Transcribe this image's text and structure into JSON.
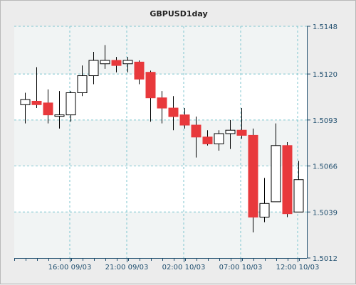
{
  "chart_data": {
    "type": "candlestick",
    "title": "GBPUSD1day",
    "y_ticks": [
      "1.5148",
      "1.5120",
      "1.5093",
      "1.5066",
      "1.5039",
      "1.5012"
    ],
    "x_ticks": [
      "16:00 09/03",
      "21:00 09/03",
      "02:00 10/03",
      "07:00 10/03",
      "12:00 10/03"
    ],
    "ylim": [
      1.5012,
      1.5148
    ],
    "grid": true,
    "colors": {
      "up_body": "#ffffff",
      "down_body": "#e8393c",
      "outline": "#000000",
      "grid": "#7fc6cf",
      "plot_bg": "#ffffff",
      "band": "#f1f4f4"
    },
    "candles": [
      {
        "o": 1.5102,
        "h": 1.5109,
        "l": 1.5091,
        "c": 1.5105
      },
      {
        "o": 1.5104,
        "h": 1.5124,
        "l": 1.51,
        "c": 1.5102
      },
      {
        "o": 1.5103,
        "h": 1.5111,
        "l": 1.5091,
        "c": 1.5096
      },
      {
        "o": 1.5096,
        "h": 1.511,
        "l": 1.5088,
        "c": 1.5096
      },
      {
        "o": 1.5096,
        "h": 1.511,
        "l": 1.5092,
        "c": 1.5109
      },
      {
        "o": 1.5109,
        "h": 1.5125,
        "l": 1.5107,
        "c": 1.5119
      },
      {
        "o": 1.5119,
        "h": 1.5133,
        "l": 1.5114,
        "c": 1.5128
      },
      {
        "o": 1.5126,
        "h": 1.5137,
        "l": 1.5123,
        "c": 1.5128
      },
      {
        "o": 1.5128,
        "h": 1.513,
        "l": 1.5121,
        "c": 1.5125
      },
      {
        "o": 1.5126,
        "h": 1.513,
        "l": 1.5121,
        "c": 1.5128
      },
      {
        "o": 1.5127,
        "h": 1.5128,
        "l": 1.5114,
        "c": 1.5117
      },
      {
        "o": 1.5121,
        "h": 1.5122,
        "l": 1.5092,
        "c": 1.5106
      },
      {
        "o": 1.5106,
        "h": 1.511,
        "l": 1.5091,
        "c": 1.51
      },
      {
        "o": 1.51,
        "h": 1.5107,
        "l": 1.5087,
        "c": 1.5095
      },
      {
        "o": 1.5096,
        "h": 1.51,
        "l": 1.5088,
        "c": 1.509
      },
      {
        "o": 1.509,
        "h": 1.5095,
        "l": 1.5071,
        "c": 1.5083
      },
      {
        "o": 1.5083,
        "h": 1.5087,
        "l": 1.5078,
        "c": 1.5079
      },
      {
        "o": 1.5079,
        "h": 1.5087,
        "l": 1.5075,
        "c": 1.5085
      },
      {
        "o": 1.5085,
        "h": 1.5093,
        "l": 1.5076,
        "c": 1.5087
      },
      {
        "o": 1.5087,
        "h": 1.51,
        "l": 1.5082,
        "c": 1.5084
      },
      {
        "o": 1.5084,
        "h": 1.5088,
        "l": 1.5027,
        "c": 1.5036
      },
      {
        "o": 1.5036,
        "h": 1.5059,
        "l": 1.5033,
        "c": 1.5044
      },
      {
        "o": 1.5045,
        "h": 1.5091,
        "l": 1.5045,
        "c": 1.5078
      },
      {
        "o": 1.5078,
        "h": 1.508,
        "l": 1.5036,
        "c": 1.5038
      },
      {
        "o": 1.5039,
        "h": 1.5069,
        "l": 1.5039,
        "c": 1.5058
      }
    ]
  }
}
